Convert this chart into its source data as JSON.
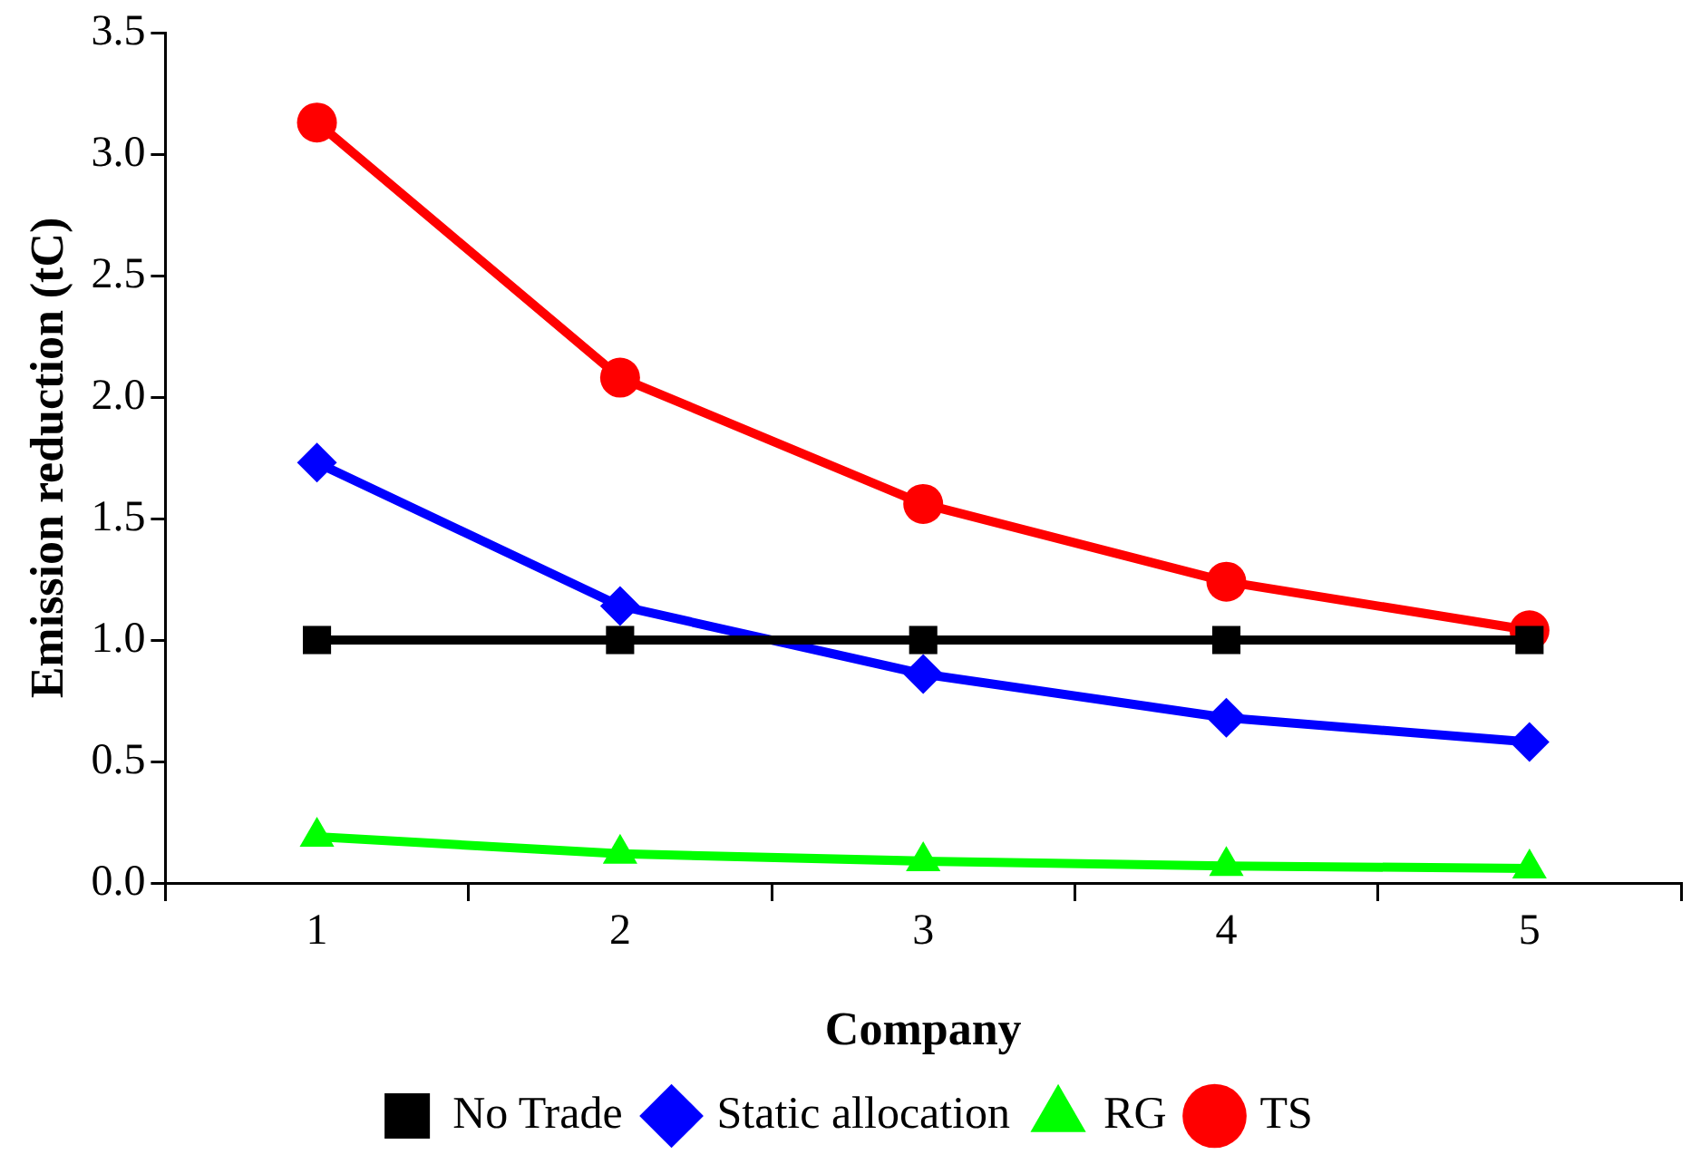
{
  "chart_data": {
    "type": "line",
    "xlabel": "Company",
    "ylabel": "Emission reduction (tC)",
    "categories": [
      "1",
      "2",
      "3",
      "4",
      "5"
    ],
    "series": [
      {
        "name": "No Trade",
        "color": "#000000",
        "marker": "square",
        "values": [
          1.0,
          1.0,
          1.0,
          1.0,
          1.0
        ]
      },
      {
        "name": "Static allocation",
        "color": "#0000ff",
        "marker": "diamond",
        "values": [
          1.73,
          1.14,
          0.86,
          0.68,
          0.58
        ]
      },
      {
        "name": "RG",
        "color": "#00ff00",
        "marker": "triangle",
        "values": [
          0.19,
          0.12,
          0.09,
          0.07,
          0.06
        ]
      },
      {
        "name": "TS",
        "color": "#ff0000",
        "marker": "circle",
        "values": [
          3.13,
          2.08,
          1.56,
          1.24,
          1.04
        ]
      }
    ],
    "ylim": [
      0,
      3.5
    ],
    "yticks": [
      {
        "value": 0,
        "label": "0.0"
      },
      0.5,
      {
        "value": 1,
        "label": "1.0"
      },
      1.5,
      {
        "value": 2,
        "label": "2.0"
      },
      2.5,
      {
        "value": 3,
        "label": "3.0"
      },
      3.5
    ],
    "grid": false,
    "legend": "bottom",
    "line_style": "solid"
  }
}
